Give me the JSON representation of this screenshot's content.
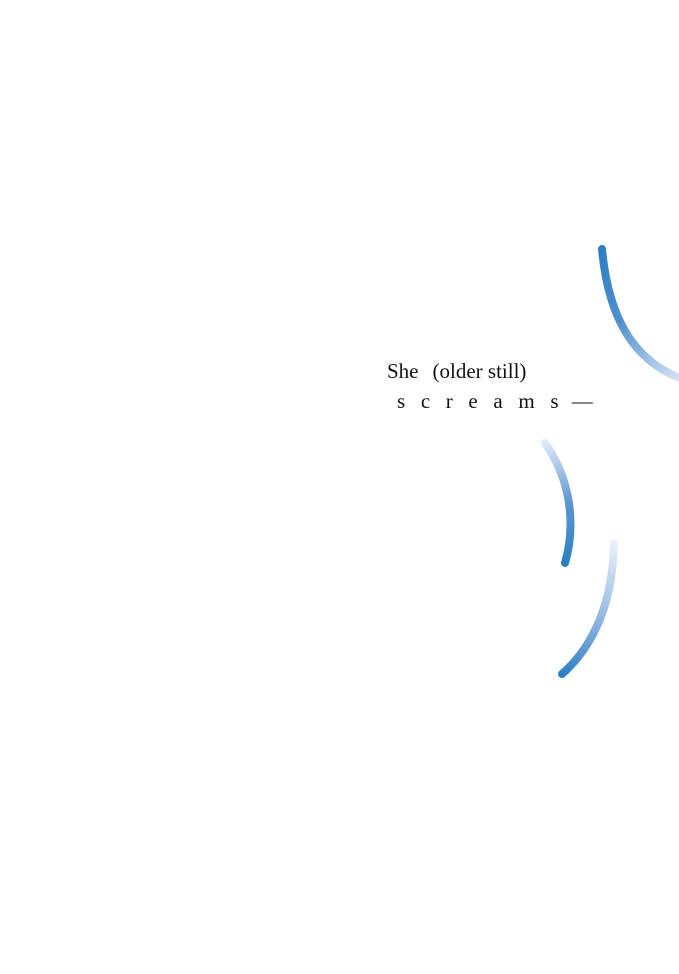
{
  "poem": {
    "line1_word": "She",
    "line1_paren": "(older still)",
    "line2_word": "s c r e a m s",
    "line2_dash": "—"
  },
  "colors": {
    "stroke_strong": "#2b7fc5",
    "stroke_faint": "#dfe8f8",
    "text": "#111111",
    "background": "#ffffff"
  }
}
